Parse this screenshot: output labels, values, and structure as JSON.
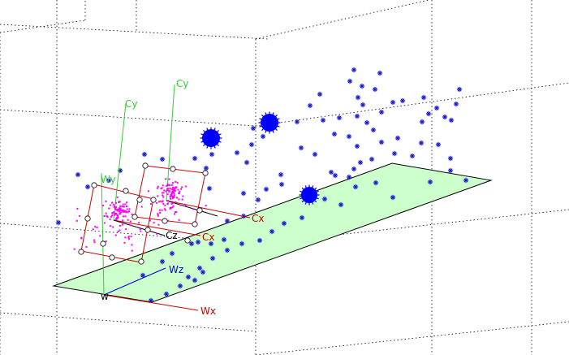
{
  "colors": {
    "grid": "#000000",
    "plane_fill": "#ccffcc",
    "plane_edge": "#000000",
    "points": "#1a1acc",
    "blob": "#0000ff",
    "camera_red": "#cc0000",
    "camera_green": "#33cc33",
    "camera_magenta": "#ff00ff",
    "world_red": "#cc0000",
    "world_green": "#33cc33",
    "world_blue": "#0000cc"
  },
  "labels": {
    "camera1_y": "Cy",
    "camera2_y": "Cy",
    "camera1_x": "Cx",
    "camera2_x": "Cx",
    "camera_z": "Cz",
    "world_y": "Wy",
    "world_z": "Wz",
    "world_x": "Wx",
    "world_origin": "w"
  }
}
